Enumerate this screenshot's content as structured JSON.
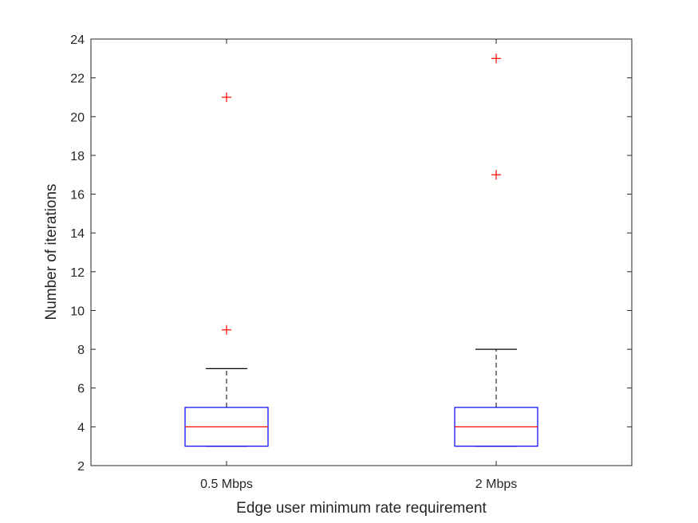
{
  "chart_data": {
    "type": "box",
    "xlabel": "Edge user minimum rate requirement",
    "ylabel": "Number of iterations",
    "ylim": [
      2,
      24
    ],
    "yticks": [
      2,
      4,
      6,
      8,
      10,
      12,
      14,
      16,
      18,
      20,
      22,
      24
    ],
    "grid": false,
    "categories": [
      "0.5 Mbps",
      "2 Mbps"
    ],
    "boxes": [
      {
        "category": "0.5 Mbps",
        "whisker_low": 3,
        "q1": 3,
        "median": 4,
        "q3": 5,
        "whisker_high": 7,
        "outliers": [
          9,
          21
        ]
      },
      {
        "category": "2 Mbps",
        "whisker_low": 3,
        "q1": 3,
        "median": 4,
        "q3": 5,
        "whisker_high": 8,
        "outliers": [
          17,
          23
        ]
      }
    ],
    "colors": {
      "box": "#0000ff",
      "median": "#ff0000",
      "whisker": "#000000",
      "outlier": "#ff0000",
      "axis": "#262626"
    }
  }
}
